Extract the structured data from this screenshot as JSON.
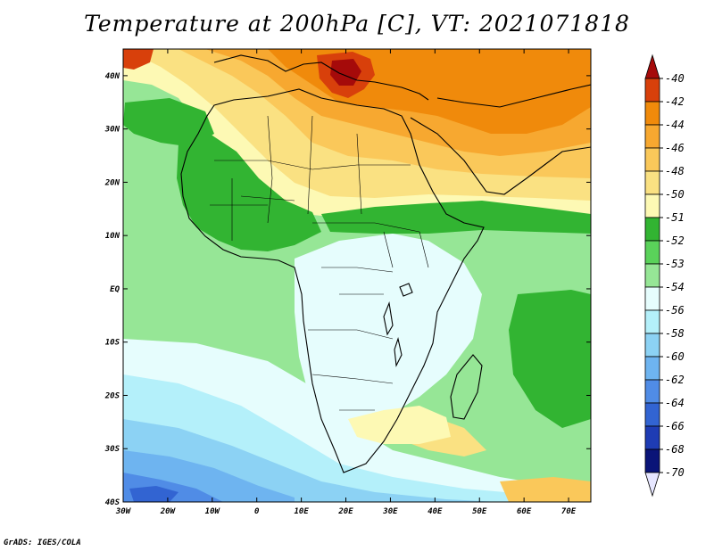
{
  "title": "Temperature at 200hPa [C], VT: 2021071818",
  "credit": "GrADS: IGES/COLA",
  "map": {
    "type": "filled-contour-map",
    "variable": "Temperature at 200hPa",
    "units": "C",
    "valid_time": "2021071818",
    "lon_range": [
      -30,
      75
    ],
    "lat_range": [
      -40,
      45
    ],
    "x_ticks": [
      "30W",
      "20W",
      "10W",
      "0",
      "10E",
      "20E",
      "30E",
      "40E",
      "50E",
      "60E",
      "70E"
    ],
    "y_ticks": [
      "40S",
      "30S",
      "20S",
      "10S",
      "EQ",
      "10N",
      "20N",
      "30N",
      "40N"
    ]
  },
  "legend": {
    "labels": [
      "-40",
      "-42",
      "-44",
      "-46",
      "-48",
      "-50",
      "-51",
      "-52",
      "-53",
      "-54",
      "-56",
      "-58",
      "-60",
      "-62",
      "-64",
      "-66",
      "-68",
      "-70"
    ],
    "colors": [
      "#a50a0a",
      "#d8400b",
      "#f08a0b",
      "#f7a830",
      "#fac85a",
      "#fae182",
      "#fdf9b4",
      "#32b432",
      "#5ad25a",
      "#96e696",
      "#e6fdfd",
      "#b4f0fa",
      "#8cd2f4",
      "#6eb4f0",
      "#508ce6",
      "#3264d2",
      "#1e3cb4",
      "#0a1478",
      "#e6e6ff"
    ]
  }
}
